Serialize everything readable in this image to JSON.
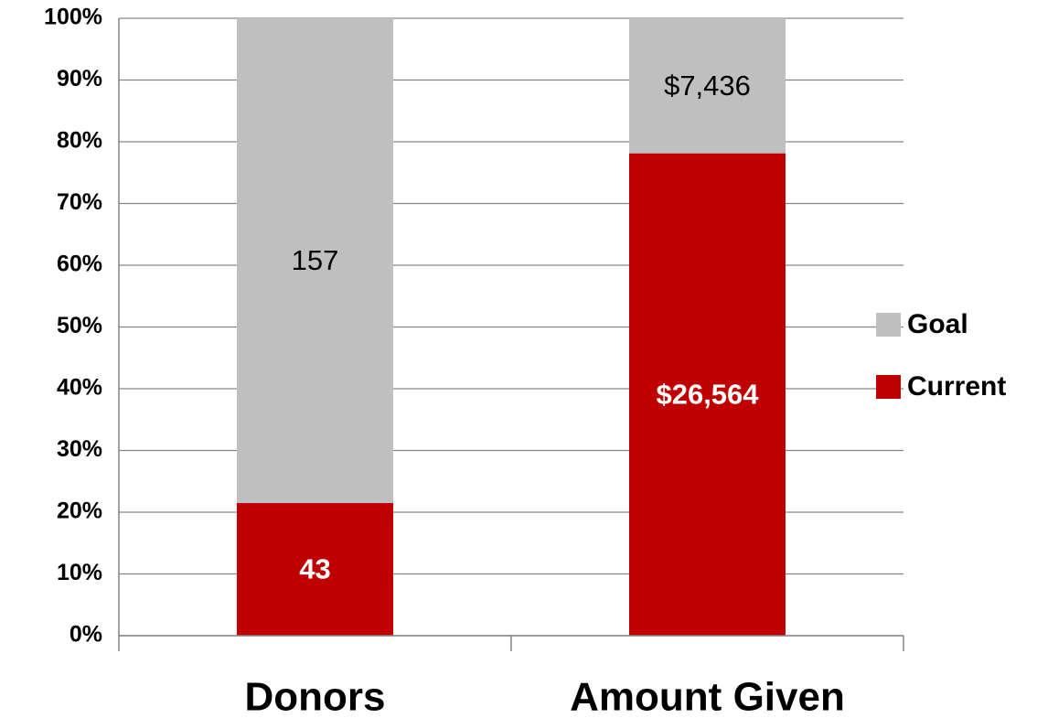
{
  "chart_data": {
    "type": "bar",
    "stacked": "percent",
    "categories": [
      "Donors",
      "Amount Given"
    ],
    "series": [
      {
        "name": "Current",
        "color": "#c00000",
        "label_color": "#ffffff",
        "label_bold": true,
        "values": [
          43,
          26564
        ],
        "value_labels": [
          "43",
          "$26,564"
        ]
      },
      {
        "name": "Goal",
        "color": "#bfbfbf",
        "label_color": "#000000",
        "label_bold": false,
        "values": [
          157,
          7436
        ],
        "value_labels": [
          "157",
          "$7,436"
        ]
      }
    ],
    "ylim": [
      0,
      100
    ],
    "yticks": [
      {
        "value": 0,
        "label": "0%"
      },
      {
        "value": 10,
        "label": "10%"
      },
      {
        "value": 20,
        "label": "20%"
      },
      {
        "value": 30,
        "label": "30%"
      },
      {
        "value": 40,
        "label": "40%"
      },
      {
        "value": 50,
        "label": "50%"
      },
      {
        "value": 60,
        "label": "60%"
      },
      {
        "value": 70,
        "label": "70%"
      },
      {
        "value": 80,
        "label": "80%"
      },
      {
        "value": 90,
        "label": "90%"
      },
      {
        "value": 100,
        "label": "100%"
      }
    ],
    "grid": true,
    "legend": "right"
  }
}
